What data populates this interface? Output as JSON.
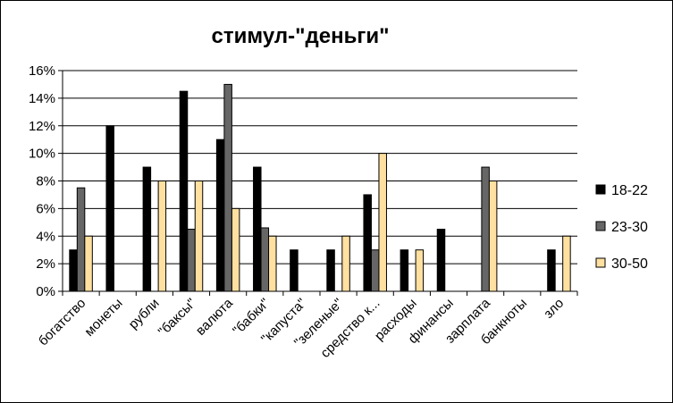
{
  "chart_data": {
    "type": "bar",
    "title": "стимул-\"деньги\"",
    "xlabel": "",
    "ylabel": "",
    "ylim": [
      0,
      0.16
    ],
    "y_ticks": [
      0,
      0.02,
      0.04,
      0.06,
      0.08,
      0.1,
      0.12,
      0.14,
      0.16
    ],
    "y_tick_labels": [
      "0%",
      "2%",
      "4%",
      "6%",
      "8%",
      "10%",
      "12%",
      "14%",
      "16%"
    ],
    "grid": "horizontal-major",
    "legend_position": "right",
    "categories": [
      "богатство",
      "монеты",
      "рубли",
      "\"баксы\"",
      "валюта",
      "\"бабки\"",
      "\"капуста\"",
      "\"зеленые\"",
      "средство к...",
      "расходы",
      "финансы",
      "зарплата",
      "банкноты",
      "зло"
    ],
    "series": [
      {
        "name": "18-22",
        "color": "#000000",
        "values": [
          0.03,
          0.12,
          0.09,
          0.145,
          0.11,
          0.09,
          0.03,
          0.03,
          0.07,
          0.03,
          0.045,
          0,
          0,
          0.03
        ]
      },
      {
        "name": "23-30",
        "color": "#666666",
        "values": [
          0.075,
          0,
          0,
          0.045,
          0.15,
          0.046,
          0,
          0,
          0.03,
          0,
          0,
          0.09,
          0,
          0
        ]
      },
      {
        "name": "30-50",
        "color": "#FFE0A0",
        "values": [
          0.04,
          0,
          0.08,
          0.08,
          0.06,
          0.04,
          0,
          0.04,
          0.1,
          0.03,
          0,
          0.08,
          0,
          0.04
        ]
      }
    ]
  }
}
